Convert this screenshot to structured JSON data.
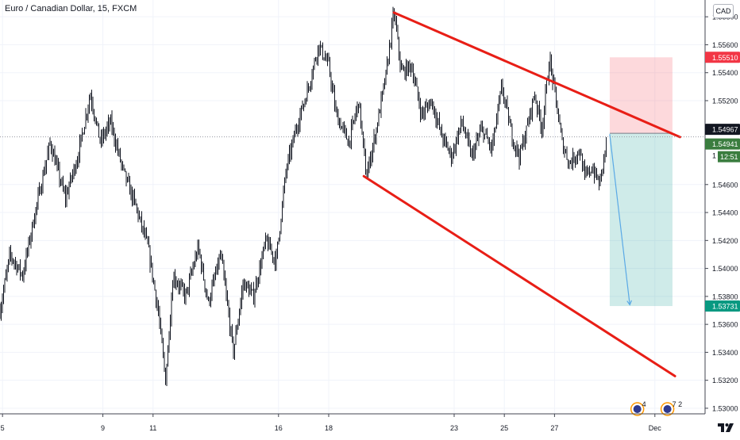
{
  "header": {
    "title": "Euro / Canadian Dollar, 15, FXCM",
    "currency_button": "CAD"
  },
  "colors": {
    "candle": "#131722",
    "trendline": "#e81e16",
    "stop_zone": "rgba(247,82,95,0.22)",
    "target_zone": "rgba(38,166,154,0.22)",
    "stop_label_bg": "#f23645",
    "target_label_bg": "#089981",
    "last_price_bg": "#3a7d3f",
    "entry_label_bg": "#131722",
    "projection_arrow": "#5aa9e6",
    "grid": "#f0f3fa",
    "axis_text": "#131722"
  },
  "icons": [
    "calendar-event-icon",
    "tradingview-logo-icon"
  ],
  "chart_data": {
    "type": "candlestick",
    "symbol": "Euro / Canadian Dollar",
    "interval": "15",
    "source": "FXCM",
    "y_ticks": [
      "1.55800",
      "1.55600",
      "1.55400",
      "1.55200",
      "1.54600",
      "1.54400",
      "1.54200",
      "1.54000",
      "1.53800",
      "1.53600",
      "1.53400",
      "1.53200",
      "1.53000"
    ],
    "x_ticks": [
      "5",
      "9",
      "11",
      "16",
      "18",
      "23",
      "25",
      "27",
      "Dec"
    ],
    "x_tick_days": [
      5,
      9,
      11,
      16,
      18,
      23,
      25,
      27,
      31
    ],
    "ylim": [
      1.5296,
      1.5592
    ],
    "xlim": [
      4.9,
      33.0
    ],
    "price_path": [
      [
        4.9,
        1.537
      ],
      [
        5.3,
        1.541
      ],
      [
        5.8,
        1.5395
      ],
      [
        6.3,
        1.544
      ],
      [
        6.9,
        1.549
      ],
      [
        7.5,
        1.545
      ],
      [
        8.0,
        1.548
      ],
      [
        8.5,
        1.5525
      ],
      [
        8.9,
        1.549
      ],
      [
        9.3,
        1.5505
      ],
      [
        9.8,
        1.547
      ],
      [
        10.3,
        1.5445
      ],
      [
        10.8,
        1.5415
      ],
      [
        11.2,
        1.537
      ],
      [
        11.5,
        1.532
      ],
      [
        11.8,
        1.5395
      ],
      [
        12.3,
        1.538
      ],
      [
        12.8,
        1.5415
      ],
      [
        13.2,
        1.5375
      ],
      [
        13.7,
        1.541
      ],
      [
        14.2,
        1.534
      ],
      [
        14.6,
        1.539
      ],
      [
        15.0,
        1.538
      ],
      [
        15.5,
        1.542
      ],
      [
        15.9,
        1.5405
      ],
      [
        16.3,
        1.547
      ],
      [
        16.7,
        1.55
      ],
      [
        17.2,
        1.553
      ],
      [
        17.6,
        1.556
      ],
      [
        18.0,
        1.5545
      ],
      [
        18.3,
        1.551
      ],
      [
        18.8,
        1.549
      ],
      [
        19.2,
        1.552
      ],
      [
        19.5,
        1.5465
      ],
      [
        19.9,
        1.55
      ],
      [
        20.3,
        1.554
      ],
      [
        20.6,
        1.5584
      ],
      [
        20.9,
        1.554
      ],
      [
        21.3,
        1.5545
      ],
      [
        21.7,
        1.551
      ],
      [
        22.1,
        1.552
      ],
      [
        22.5,
        1.5495
      ],
      [
        22.9,
        1.548
      ],
      [
        23.3,
        1.5505
      ],
      [
        23.7,
        1.548
      ],
      [
        24.1,
        1.55
      ],
      [
        24.5,
        1.5485
      ],
      [
        24.9,
        1.553
      ],
      [
        25.3,
        1.5495
      ],
      [
        25.6,
        1.548
      ],
      [
        25.9,
        1.55
      ],
      [
        26.2,
        1.5525
      ],
      [
        26.5,
        1.55
      ],
      [
        26.8,
        1.555
      ],
      [
        27.1,
        1.5515
      ],
      [
        27.3,
        1.549
      ],
      [
        27.6,
        1.5475
      ],
      [
        28.0,
        1.5485
      ],
      [
        28.2,
        1.5465
      ],
      [
        28.5,
        1.5472
      ],
      [
        28.8,
        1.546
      ],
      [
        29.1,
        1.5494
      ]
    ],
    "trendlines": [
      {
        "name": "upper-trendline",
        "from": [
          20.6,
          1.5583
        ],
        "to": [
          32.0,
          1.5494
        ]
      },
      {
        "name": "lower-trendline",
        "from": [
          19.4,
          1.5466
        ],
        "to": [
          31.8,
          1.5323
        ]
      }
    ],
    "position": {
      "type": "short",
      "entry": 1.54967,
      "stop": 1.5551,
      "target": 1.53731,
      "x_from": 29.2,
      "x_to": 31.7
    },
    "projection_arrow": {
      "from": [
        29.2,
        1.5496
      ],
      "to": [
        30.0,
        1.5374
      ]
    },
    "last_price": 1.54941,
    "countdown": "12:51",
    "price_labels": {
      "stop": "1.55510",
      "entry": "1.54967",
      "last": "1.54941",
      "target": "1.53731",
      "partial_tick": "1"
    },
    "events": [
      {
        "day": 30.3,
        "count": "4"
      },
      {
        "day": 31.5,
        "count": "7 2"
      }
    ],
    "grid": true,
    "legend": "none"
  }
}
